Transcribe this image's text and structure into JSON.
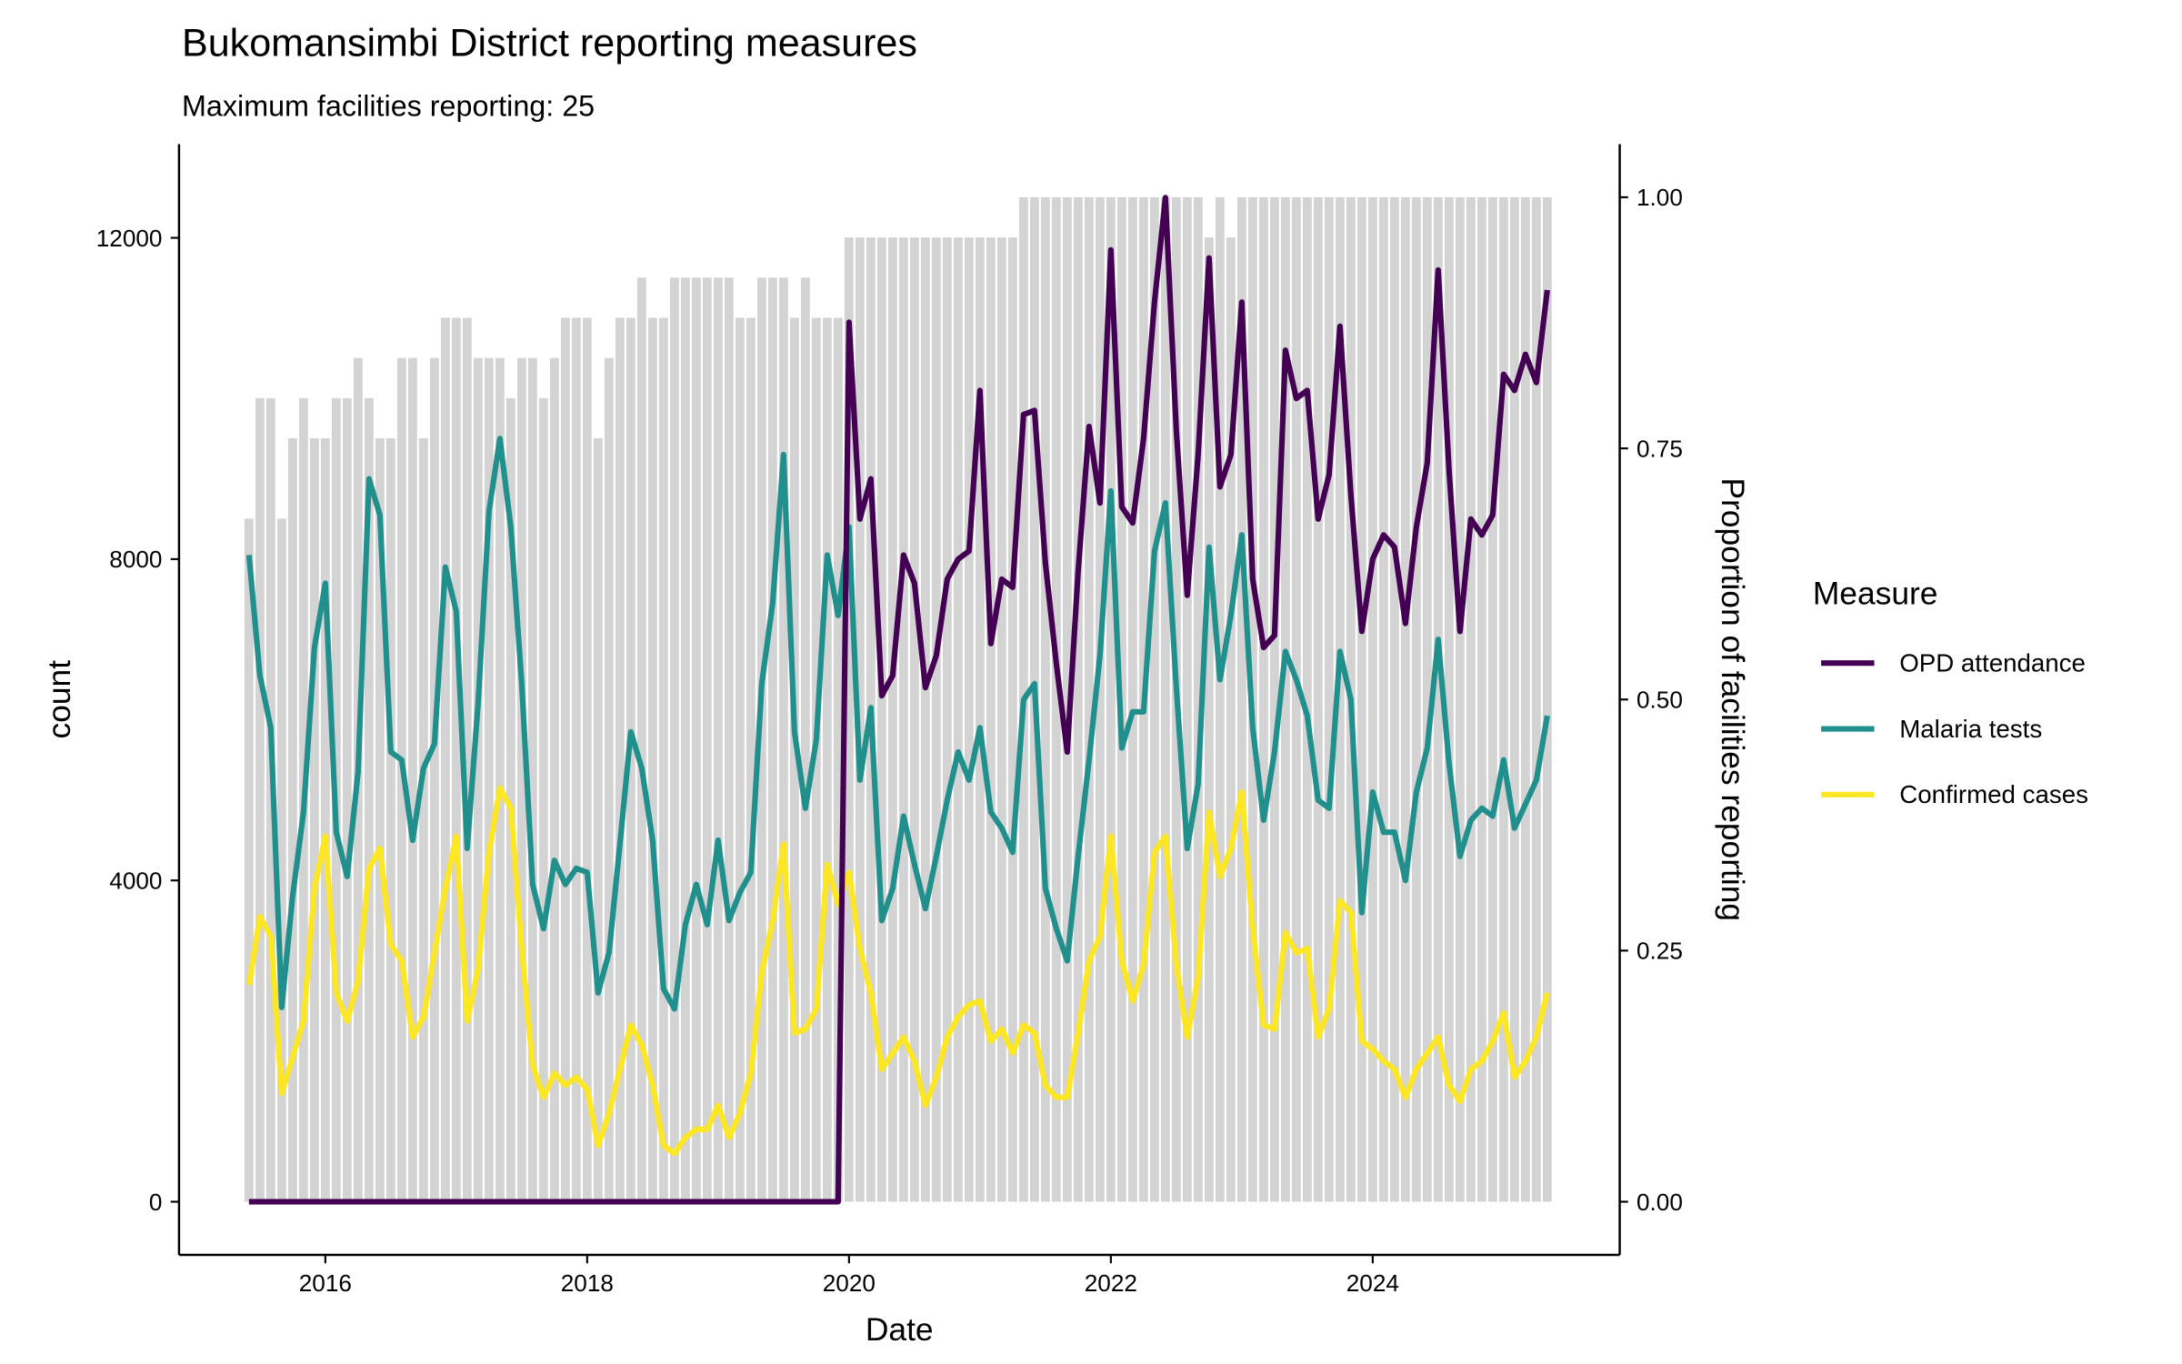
{
  "chart_data": {
    "type": "line",
    "title": "Bukomansimbi District reporting measures",
    "subtitle": "Maximum facilities reporting: 25",
    "xlabel": "Date",
    "ylabel": "count",
    "y2label": "Proportion of facilities reporting",
    "start_month": "2015-06",
    "n_months": 120,
    "x_ticks": [
      "2016",
      "2018",
      "2020",
      "2022",
      "2024"
    ],
    "y_ticks": [
      "0",
      "4000",
      "8000",
      "12000"
    ],
    "y_tick_values": [
      0,
      4000,
      8000,
      12000
    ],
    "y2_ticks": [
      "0.00",
      "0.25",
      "0.50",
      "0.75",
      "1.00"
    ],
    "y2_tick_values": [
      0,
      0.25,
      0.5,
      0.75,
      1.0
    ],
    "ylim": [
      -700,
      13200
    ],
    "max_facilities": 25,
    "grid": false,
    "legend": {
      "title": "Measure",
      "placement": "right"
    },
    "facilities_reporting": [
      17,
      20,
      20,
      17,
      19,
      20,
      19,
      19,
      20,
      20,
      21,
      20,
      19,
      19,
      21,
      21,
      19,
      21,
      22,
      22,
      22,
      21,
      21,
      21,
      20,
      21,
      21,
      20,
      21,
      22,
      22,
      22,
      19,
      21,
      22,
      22,
      23,
      22,
      22,
      23,
      23,
      23,
      23,
      23,
      23,
      22,
      22,
      23,
      23,
      23,
      22,
      23,
      22,
      22,
      22,
      24,
      24,
      24,
      24,
      24,
      24,
      24,
      24,
      24,
      24,
      24,
      24,
      24,
      24,
      24,
      24,
      25,
      25,
      25,
      25,
      25,
      25,
      25,
      25,
      25,
      25,
      25,
      25,
      25,
      25,
      25,
      25,
      25,
      24,
      25,
      24,
      25,
      25,
      25,
      25,
      25,
      25,
      25,
      25,
      25,
      25,
      25,
      25,
      25,
      25,
      25,
      25,
      25,
      25,
      25,
      25,
      25,
      25,
      25,
      25,
      25,
      25,
      25,
      25,
      25
    ],
    "bar_color": "#D3D3D3",
    "series": [
      {
        "name": "OPD attendance",
        "color": "#440154",
        "values": [
          0,
          0,
          0,
          0,
          0,
          0,
          0,
          0,
          0,
          0,
          0,
          0,
          0,
          0,
          0,
          0,
          0,
          0,
          0,
          0,
          0,
          0,
          0,
          0,
          0,
          0,
          0,
          0,
          0,
          0,
          0,
          0,
          0,
          0,
          0,
          0,
          0,
          0,
          0,
          0,
          0,
          0,
          0,
          0,
          0,
          0,
          0,
          0,
          0,
          0,
          0,
          0,
          0,
          0,
          0,
          10950,
          8500,
          9000,
          6300,
          6550,
          8050,
          7700,
          6400,
          6800,
          7750,
          8000,
          8100,
          10100,
          6950,
          7750,
          7650,
          9800,
          9850,
          7950,
          6700,
          5600,
          7850,
          9650,
          8700,
          11850,
          8650,
          8450,
          9500,
          11200,
          12500,
          9600,
          7550,
          9300,
          11750,
          8900,
          9300,
          11200,
          7750,
          6900,
          7050,
          10600,
          10000,
          10100,
          8500,
          9050,
          10900,
          8800,
          7100,
          8000,
          8300,
          8150,
          7200,
          8400,
          9200,
          11600,
          9100,
          7100,
          8500,
          8300,
          8550,
          10300,
          10100,
          10550,
          10200,
          11350
        ]
      },
      {
        "name": "Malaria tests",
        "color": "#21908C",
        "values": [
          8050,
          6550,
          5900,
          2420,
          3800,
          4850,
          6900,
          7700,
          4600,
          4050,
          5350,
          9000,
          8550,
          5600,
          5500,
          4500,
          5400,
          5700,
          7900,
          7350,
          4400,
          6200,
          8600,
          9500,
          8400,
          6450,
          3950,
          3400,
          4250,
          3950,
          4150,
          4100,
          2600,
          3100,
          4450,
          5850,
          5400,
          4500,
          2650,
          2400,
          3450,
          3950,
          3450,
          4500,
          3500,
          3850,
          4100,
          6450,
          7450,
          9300,
          5850,
          4900,
          5750,
          8050,
          7300,
          8400,
          5250,
          6150,
          3500,
          3900,
          4800,
          4200,
          3650,
          4300,
          5000,
          5600,
          5250,
          5900,
          4850,
          4650,
          4350,
          6250,
          6450,
          3900,
          3400,
          3000,
          4300,
          5500,
          6800,
          8850,
          5650,
          6100,
          6100,
          8100,
          8700,
          6400,
          4400,
          5200,
          8150,
          6500,
          7300,
          8300,
          5900,
          4750,
          5600,
          6850,
          6500,
          6050,
          5000,
          4900,
          6850,
          6250,
          3600,
          5100,
          4600,
          4600,
          4000,
          5100,
          5650,
          7000,
          5450,
          4300,
          4750,
          4900,
          4800,
          5500,
          4650,
          4950,
          5250,
          6050
        ]
      },
      {
        "name": "Confirmed cases",
        "color": "#FDE725",
        "values": [
          2700,
          3550,
          3300,
          1350,
          1800,
          2250,
          3900,
          4550,
          2600,
          2250,
          2750,
          4150,
          4400,
          3200,
          3000,
          2050,
          2300,
          3100,
          3900,
          4550,
          2250,
          2900,
          4350,
          5150,
          4900,
          3150,
          1700,
          1300,
          1600,
          1450,
          1550,
          1400,
          700,
          1100,
          1650,
          2200,
          1950,
          1450,
          700,
          600,
          800,
          900,
          900,
          1200,
          800,
          1100,
          1600,
          2850,
          3500,
          4450,
          2100,
          2150,
          2400,
          4200,
          3700,
          4100,
          3150,
          2600,
          1650,
          1850,
          2050,
          1750,
          1200,
          1550,
          2050,
          2300,
          2450,
          2500,
          2000,
          2150,
          1850,
          2200,
          2100,
          1450,
          1300,
          1300,
          2100,
          3000,
          3300,
          4550,
          3000,
          2500,
          2950,
          4350,
          4550,
          2950,
          2050,
          2800,
          4850,
          4050,
          4400,
          5100,
          3400,
          2200,
          2150,
          3350,
          3100,
          3150,
          2050,
          2400,
          3750,
          3600,
          2000,
          1900,
          1750,
          1650,
          1300,
          1650,
          1850,
          2050,
          1450,
          1250,
          1650,
          1750,
          2000,
          2350,
          1550,
          1750,
          2050,
          2600
        ]
      }
    ]
  }
}
